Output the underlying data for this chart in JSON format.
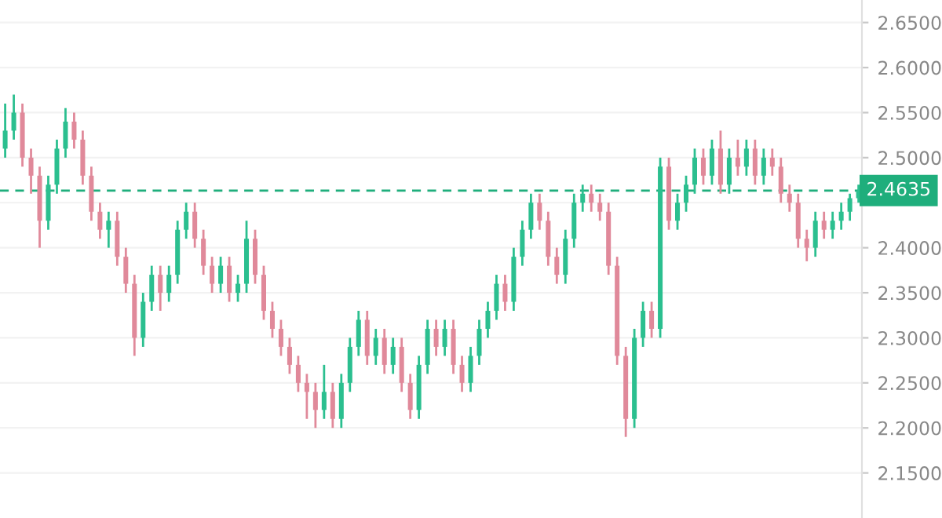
{
  "chart_data": {
    "type": "candlestick",
    "categories": [
      null,
      null,
      null,
      null,
      null,
      null,
      null,
      null,
      null,
      null,
      null,
      null,
      null,
      null,
      null,
      null,
      null,
      null,
      null,
      null,
      null,
      null,
      null,
      null,
      null,
      null,
      null,
      null,
      null,
      null,
      null,
      null,
      null,
      null,
      null,
      null,
      null,
      null,
      null,
      null,
      null,
      null,
      null,
      null,
      null,
      null,
      null,
      null,
      null,
      null,
      null,
      null,
      null,
      null,
      null,
      null,
      null,
      null,
      null,
      null,
      null,
      null,
      null,
      null,
      null,
      null,
      null,
      null,
      null,
      null,
      null,
      null,
      null,
      null,
      null,
      null,
      null,
      null,
      null,
      null,
      null,
      null,
      null,
      null,
      null,
      null,
      null,
      null,
      null,
      null,
      null,
      null,
      null,
      null,
      null,
      null,
      null,
      null,
      null,
      null
    ],
    "ohlc": [
      [
        2.51,
        2.56,
        2.5,
        2.53
      ],
      [
        2.53,
        2.57,
        2.52,
        2.55
      ],
      [
        2.55,
        2.56,
        2.49,
        2.5
      ],
      [
        2.5,
        2.51,
        2.46,
        2.48
      ],
      [
        2.48,
        2.49,
        2.4,
        2.43
      ],
      [
        2.43,
        2.48,
        2.42,
        2.47
      ],
      [
        2.47,
        2.52,
        2.46,
        2.51
      ],
      [
        2.51,
        2.555,
        2.5,
        2.54
      ],
      [
        2.54,
        2.55,
        2.51,
        2.52
      ],
      [
        2.52,
        2.53,
        2.47,
        2.48
      ],
      [
        2.48,
        2.49,
        2.43,
        2.44
      ],
      [
        2.44,
        2.45,
        2.41,
        2.42
      ],
      [
        2.42,
        2.44,
        2.4,
        2.43
      ],
      [
        2.43,
        2.44,
        2.38,
        2.39
      ],
      [
        2.39,
        2.4,
        2.35,
        2.36
      ],
      [
        2.36,
        2.37,
        2.28,
        2.3
      ],
      [
        2.3,
        2.35,
        2.29,
        2.34
      ],
      [
        2.34,
        2.38,
        2.33,
        2.37
      ],
      [
        2.37,
        2.38,
        2.33,
        2.35
      ],
      [
        2.35,
        2.38,
        2.34,
        2.37
      ],
      [
        2.37,
        2.43,
        2.36,
        2.42
      ],
      [
        2.42,
        2.45,
        2.41,
        2.44
      ],
      [
        2.44,
        2.45,
        2.4,
        2.41
      ],
      [
        2.41,
        2.42,
        2.37,
        2.38
      ],
      [
        2.38,
        2.39,
        2.35,
        2.36
      ],
      [
        2.36,
        2.39,
        2.35,
        2.38
      ],
      [
        2.38,
        2.39,
        2.34,
        2.35
      ],
      [
        2.35,
        2.37,
        2.34,
        2.36
      ],
      [
        2.36,
        2.43,
        2.35,
        2.41
      ],
      [
        2.41,
        2.42,
        2.36,
        2.37
      ],
      [
        2.37,
        2.38,
        2.32,
        2.33
      ],
      [
        2.33,
        2.34,
        2.3,
        2.31
      ],
      [
        2.31,
        2.32,
        2.28,
        2.29
      ],
      [
        2.29,
        2.3,
        2.26,
        2.27
      ],
      [
        2.27,
        2.28,
        2.24,
        2.25
      ],
      [
        2.25,
        2.26,
        2.21,
        2.24
      ],
      [
        2.24,
        2.25,
        2.2,
        2.22
      ],
      [
        2.22,
        2.27,
        2.21,
        2.24
      ],
      [
        2.24,
        2.25,
        2.2,
        2.21
      ],
      [
        2.21,
        2.26,
        2.2,
        2.25
      ],
      [
        2.25,
        2.3,
        2.24,
        2.29
      ],
      [
        2.29,
        2.33,
        2.28,
        2.32
      ],
      [
        2.32,
        2.33,
        2.27,
        2.28
      ],
      [
        2.28,
        2.31,
        2.27,
        2.3
      ],
      [
        2.3,
        2.31,
        2.26,
        2.27
      ],
      [
        2.27,
        2.3,
        2.26,
        2.29
      ],
      [
        2.29,
        2.3,
        2.24,
        2.25
      ],
      [
        2.25,
        2.26,
        2.21,
        2.22
      ],
      [
        2.22,
        2.28,
        2.21,
        2.27
      ],
      [
        2.27,
        2.32,
        2.26,
        2.31
      ],
      [
        2.31,
        2.32,
        2.28,
        2.29
      ],
      [
        2.29,
        2.32,
        2.28,
        2.31
      ],
      [
        2.31,
        2.32,
        2.26,
        2.27
      ],
      [
        2.27,
        2.28,
        2.24,
        2.25
      ],
      [
        2.25,
        2.29,
        2.24,
        2.28
      ],
      [
        2.28,
        2.32,
        2.27,
        2.31
      ],
      [
        2.31,
        2.34,
        2.3,
        2.33
      ],
      [
        2.33,
        2.37,
        2.32,
        2.36
      ],
      [
        2.36,
        2.37,
        2.33,
        2.34
      ],
      [
        2.34,
        2.4,
        2.33,
        2.39
      ],
      [
        2.39,
        2.43,
        2.38,
        2.42
      ],
      [
        2.42,
        2.46,
        2.41,
        2.45
      ],
      [
        2.45,
        2.46,
        2.42,
        2.43
      ],
      [
        2.43,
        2.44,
        2.38,
        2.39
      ],
      [
        2.39,
        2.4,
        2.36,
        2.37
      ],
      [
        2.37,
        2.42,
        2.36,
        2.41
      ],
      [
        2.41,
        2.46,
        2.4,
        2.45
      ],
      [
        2.45,
        2.47,
        2.44,
        2.46
      ],
      [
        2.46,
        2.47,
        2.44,
        2.45
      ],
      [
        2.45,
        2.46,
        2.43,
        2.44
      ],
      [
        2.44,
        2.45,
        2.37,
        2.38
      ],
      [
        2.38,
        2.39,
        2.27,
        2.28
      ],
      [
        2.28,
        2.29,
        2.19,
        2.21
      ],
      [
        2.21,
        2.31,
        2.2,
        2.3
      ],
      [
        2.3,
        2.34,
        2.29,
        2.33
      ],
      [
        2.33,
        2.34,
        2.3,
        2.31
      ],
      [
        2.31,
        2.5,
        2.3,
        2.49
      ],
      [
        2.49,
        2.5,
        2.42,
        2.43
      ],
      [
        2.43,
        2.46,
        2.42,
        2.45
      ],
      [
        2.45,
        2.48,
        2.44,
        2.47
      ],
      [
        2.47,
        2.51,
        2.46,
        2.5
      ],
      [
        2.5,
        2.51,
        2.47,
        2.48
      ],
      [
        2.48,
        2.52,
        2.47,
        2.51
      ],
      [
        2.51,
        2.53,
        2.46,
        2.47
      ],
      [
        2.47,
        2.51,
        2.46,
        2.5
      ],
      [
        2.5,
        2.52,
        2.48,
        2.49
      ],
      [
        2.49,
        2.52,
        2.48,
        2.51
      ],
      [
        2.51,
        2.52,
        2.47,
        2.48
      ],
      [
        2.48,
        2.51,
        2.47,
        2.5
      ],
      [
        2.5,
        2.51,
        2.48,
        2.49
      ],
      [
        2.49,
        2.5,
        2.45,
        2.46
      ],
      [
        2.46,
        2.47,
        2.44,
        2.45
      ],
      [
        2.45,
        2.46,
        2.4,
        2.41
      ],
      [
        2.41,
        2.42,
        2.385,
        2.4
      ],
      [
        2.4,
        2.44,
        2.39,
        2.43
      ],
      [
        2.43,
        2.44,
        2.41,
        2.42
      ],
      [
        2.42,
        2.44,
        2.41,
        2.43
      ],
      [
        2.43,
        2.45,
        2.42,
        2.44
      ],
      [
        2.44,
        2.46,
        2.43,
        2.455
      ],
      [
        2.455,
        2.47,
        2.45,
        2.4635
      ]
    ],
    "colors": [
      "#2bbf8f",
      "#2bbf8f",
      "#e0899a",
      "#e0899a",
      "#e0899a",
      "#2bbf8f",
      "#2bbf8f",
      "#2bbf8f",
      "#e0899a",
      "#e0899a",
      "#e0899a",
      "#e0899a",
      "#2bbf8f",
      "#e0899a",
      "#e0899a",
      "#e0899a",
      "#2bbf8f",
      "#2bbf8f",
      "#e0899a",
      "#2bbf8f",
      "#2bbf8f",
      "#2bbf8f",
      "#e0899a",
      "#e0899a",
      "#e0899a",
      "#2bbf8f",
      "#e0899a",
      "#2bbf8f",
      "#2bbf8f",
      "#e0899a",
      "#e0899a",
      "#e0899a",
      "#e0899a",
      "#e0899a",
      "#e0899a",
      "#e0899a",
      "#e0899a",
      "#2bbf8f",
      "#e0899a",
      "#2bbf8f",
      "#2bbf8f",
      "#2bbf8f",
      "#e0899a",
      "#2bbf8f",
      "#e0899a",
      "#2bbf8f",
      "#e0899a",
      "#e0899a",
      "#2bbf8f",
      "#2bbf8f",
      "#e0899a",
      "#2bbf8f",
      "#e0899a",
      "#e0899a",
      "#2bbf8f",
      "#2bbf8f",
      "#2bbf8f",
      "#2bbf8f",
      "#e0899a",
      "#2bbf8f",
      "#2bbf8f",
      "#2bbf8f",
      "#e0899a",
      "#e0899a",
      "#e0899a",
      "#2bbf8f",
      "#2bbf8f",
      "#2bbf8f",
      "#e0899a",
      "#e0899a",
      "#e0899a",
      "#e0899a",
      "#e0899a",
      "#2bbf8f",
      "#2bbf8f",
      "#e0899a",
      "#2bbf8f",
      "#e0899a",
      "#2bbf8f",
      "#2bbf8f",
      "#2bbf8f",
      "#e0899a",
      "#2bbf8f",
      "#e0899a",
      "#2bbf8f",
      "#e0899a",
      "#2bbf8f",
      "#e0899a",
      "#2bbf8f",
      "#e0899a",
      "#e0899a",
      "#e0899a",
      "#e0899a",
      "#e0899a",
      "#2bbf8f",
      "#e0899a",
      "#2bbf8f",
      "#2bbf8f",
      "#2bbf8f",
      "#2bbf8f"
    ],
    "ylim": [
      2.1,
      2.675
    ],
    "yticks": [
      {
        "value": 2.15,
        "label": "2.1500"
      },
      {
        "value": 2.2,
        "label": "2.2000"
      },
      {
        "value": 2.25,
        "label": "2.2500"
      },
      {
        "value": 2.3,
        "label": "2.3000"
      },
      {
        "value": 2.35,
        "label": "2.3500"
      },
      {
        "value": 2.4,
        "label": "2.4000"
      },
      {
        "value": 2.45,
        "label": null
      },
      {
        "value": 2.5,
        "label": "2.5000"
      },
      {
        "value": 2.55,
        "label": "2.5500"
      },
      {
        "value": 2.6,
        "label": "2.6000"
      },
      {
        "value": 2.65,
        "label": "2.6500"
      }
    ],
    "ref_lines": [
      {
        "axis": "y",
        "value": 2.4635,
        "label": "2.4635",
        "color": "#1fae7c",
        "line_style": "dashed"
      }
    ],
    "grid": "y",
    "tick_labels": "y"
  }
}
